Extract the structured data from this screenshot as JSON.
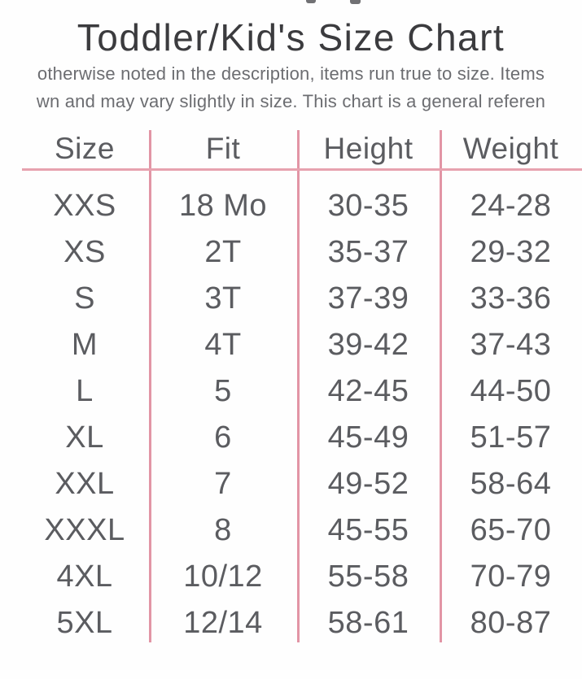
{
  "subtitle": {
    "line1": "otherwise noted in the description, items run true to size. Items",
    "line2": "wn and may vary slightly in size. This chart is a general referen"
  },
  "chart_data": {
    "type": "table",
    "title": "Toddler/Kid's Size Chart",
    "columns": [
      "Size",
      "Fit",
      "Height",
      "Weight"
    ],
    "rows": [
      [
        "XXS",
        "18 Mo",
        "30-35",
        "24-28"
      ],
      [
        "XS",
        "2T",
        "35-37",
        "29-32"
      ],
      [
        "S",
        "3T",
        "37-39",
        "33-36"
      ],
      [
        "M",
        "4T",
        "39-42",
        "37-43"
      ],
      [
        "L",
        "5",
        "42-45",
        "44-50"
      ],
      [
        "XL",
        "6",
        "45-49",
        "51-57"
      ],
      [
        "XXL",
        "7",
        "49-52",
        "58-64"
      ],
      [
        "XXXL",
        "8",
        "45-55",
        "65-70"
      ],
      [
        "4XL",
        "10/12",
        "55-58",
        "70-79"
      ],
      [
        "5XL",
        "12/14",
        "58-61",
        "80-87"
      ]
    ]
  },
  "colors": {
    "line_pink_h": "#e7a2af",
    "line_pink_v": "#e295a5",
    "title_text": "#3b3b3e",
    "table_text": "#5b5c60",
    "subtitle_text": "#6c6d71",
    "page_bg": "#fefefe"
  }
}
